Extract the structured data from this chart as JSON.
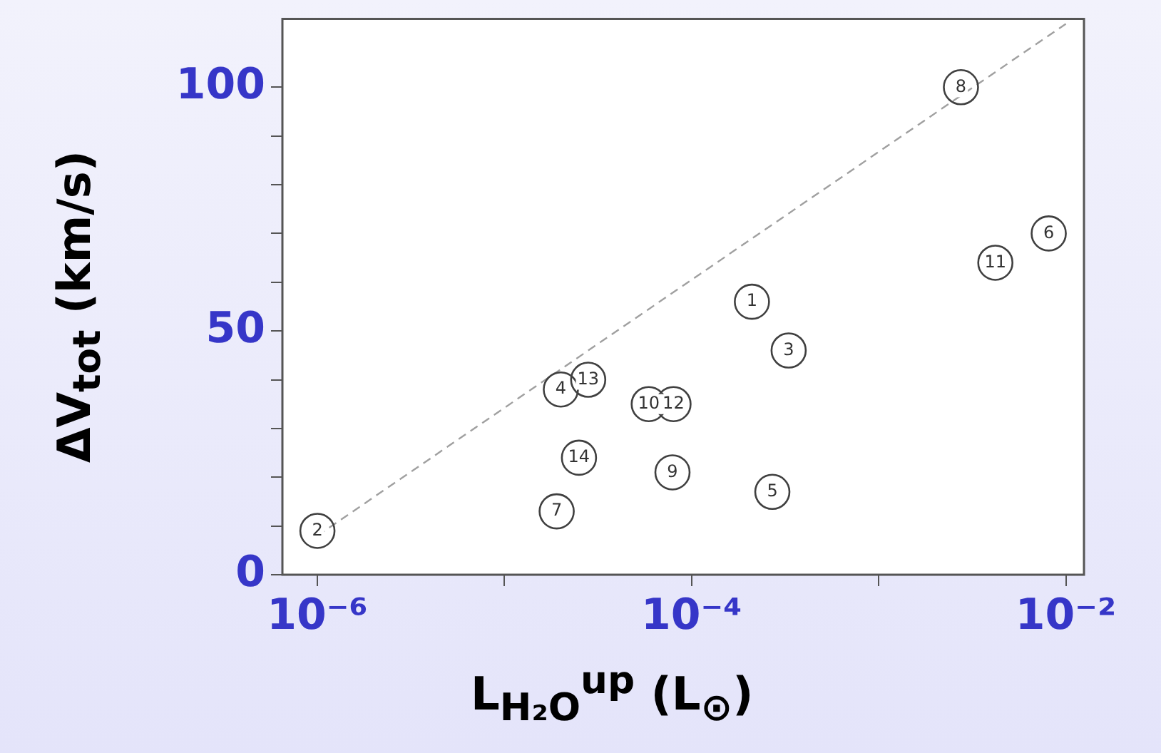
{
  "chart_data": {
    "type": "scatter",
    "xlabel": "L$_{H₂O}$$^{up}$ (L$_{⊙}$)",
    "ylabel": "ΔV$_{tot}$ (km/s)",
    "log": "x",
    "grid": false,
    "marker": "circle",
    "xlim": [
      6.5e-07,
      0.0125
    ],
    "ylim": [
      0,
      114
    ],
    "xticks": [
      {
        "value": 1e-06,
        "label": "10⁻⁶"
      },
      {
        "value": 1e-05,
        "label": null
      },
      {
        "value": 0.0001,
        "label": "10⁻⁴"
      },
      {
        "value": 0.001,
        "label": null
      },
      {
        "value": 0.01,
        "label": "10⁻²"
      }
    ],
    "yticks": [
      0,
      {
        "value": 10,
        "label": null
      },
      {
        "value": 20,
        "label": null
      },
      {
        "value": 30,
        "label": null
      },
      {
        "value": 40,
        "label": null
      },
      50,
      {
        "value": 60,
        "label": null
      },
      {
        "value": 70,
        "label": null
      },
      {
        "value": 80,
        "label": null
      },
      {
        "value": 90,
        "label": null
      },
      100
    ],
    "series": [
      {
        "color": "#404040",
        "x": [
          1e-06,
          2e-05,
          2.8e-05,
          2.5e-05,
          1.9e-05,
          5.9e-05,
          8e-05,
          7.9e-05,
          0.00275,
          0.0081,
          0.0042,
          0.00021,
          0.00033,
          0.00027
        ],
        "values": [
          9,
          38,
          40,
          24,
          13,
          35,
          35,
          21,
          100,
          70,
          64,
          56,
          46,
          17
        ]
      },
      {
        "type": "line",
        "color": "#a0a0a0",
        "marker": "none",
        "line_style": "dashed",
        "x": [
          1e-06,
          0.01
        ],
        "values": [
          8,
          113
        ]
      }
    ],
    "annotations": [
      {
        "text": "2",
        "x": 1e-06,
        "y": 9
      },
      {
        "text": "4",
        "x": 2e-05,
        "y": 38
      },
      {
        "text": "13",
        "x": 2.8e-05,
        "y": 40
      },
      {
        "text": "14",
        "x": 2.5e-05,
        "y": 24
      },
      {
        "text": "7",
        "x": 1.9e-05,
        "y": 13
      },
      {
        "text": "10",
        "x": 5.9e-05,
        "y": 35
      },
      {
        "text": "12",
        "x": 8e-05,
        "y": 35
      },
      {
        "text": "9",
        "x": 7.9e-05,
        "y": 21
      },
      {
        "text": "8",
        "x": 0.00275,
        "y": 100
      },
      {
        "text": "6",
        "x": 0.0081,
        "y": 70
      },
      {
        "text": "11",
        "x": 0.0042,
        "y": 64
      },
      {
        "text": "1",
        "x": 0.00021,
        "y": 56
      },
      {
        "text": "3",
        "x": 0.00033,
        "y": 46
      },
      {
        "text": "5",
        "x": 0.00027,
        "y": 17
      }
    ]
  }
}
